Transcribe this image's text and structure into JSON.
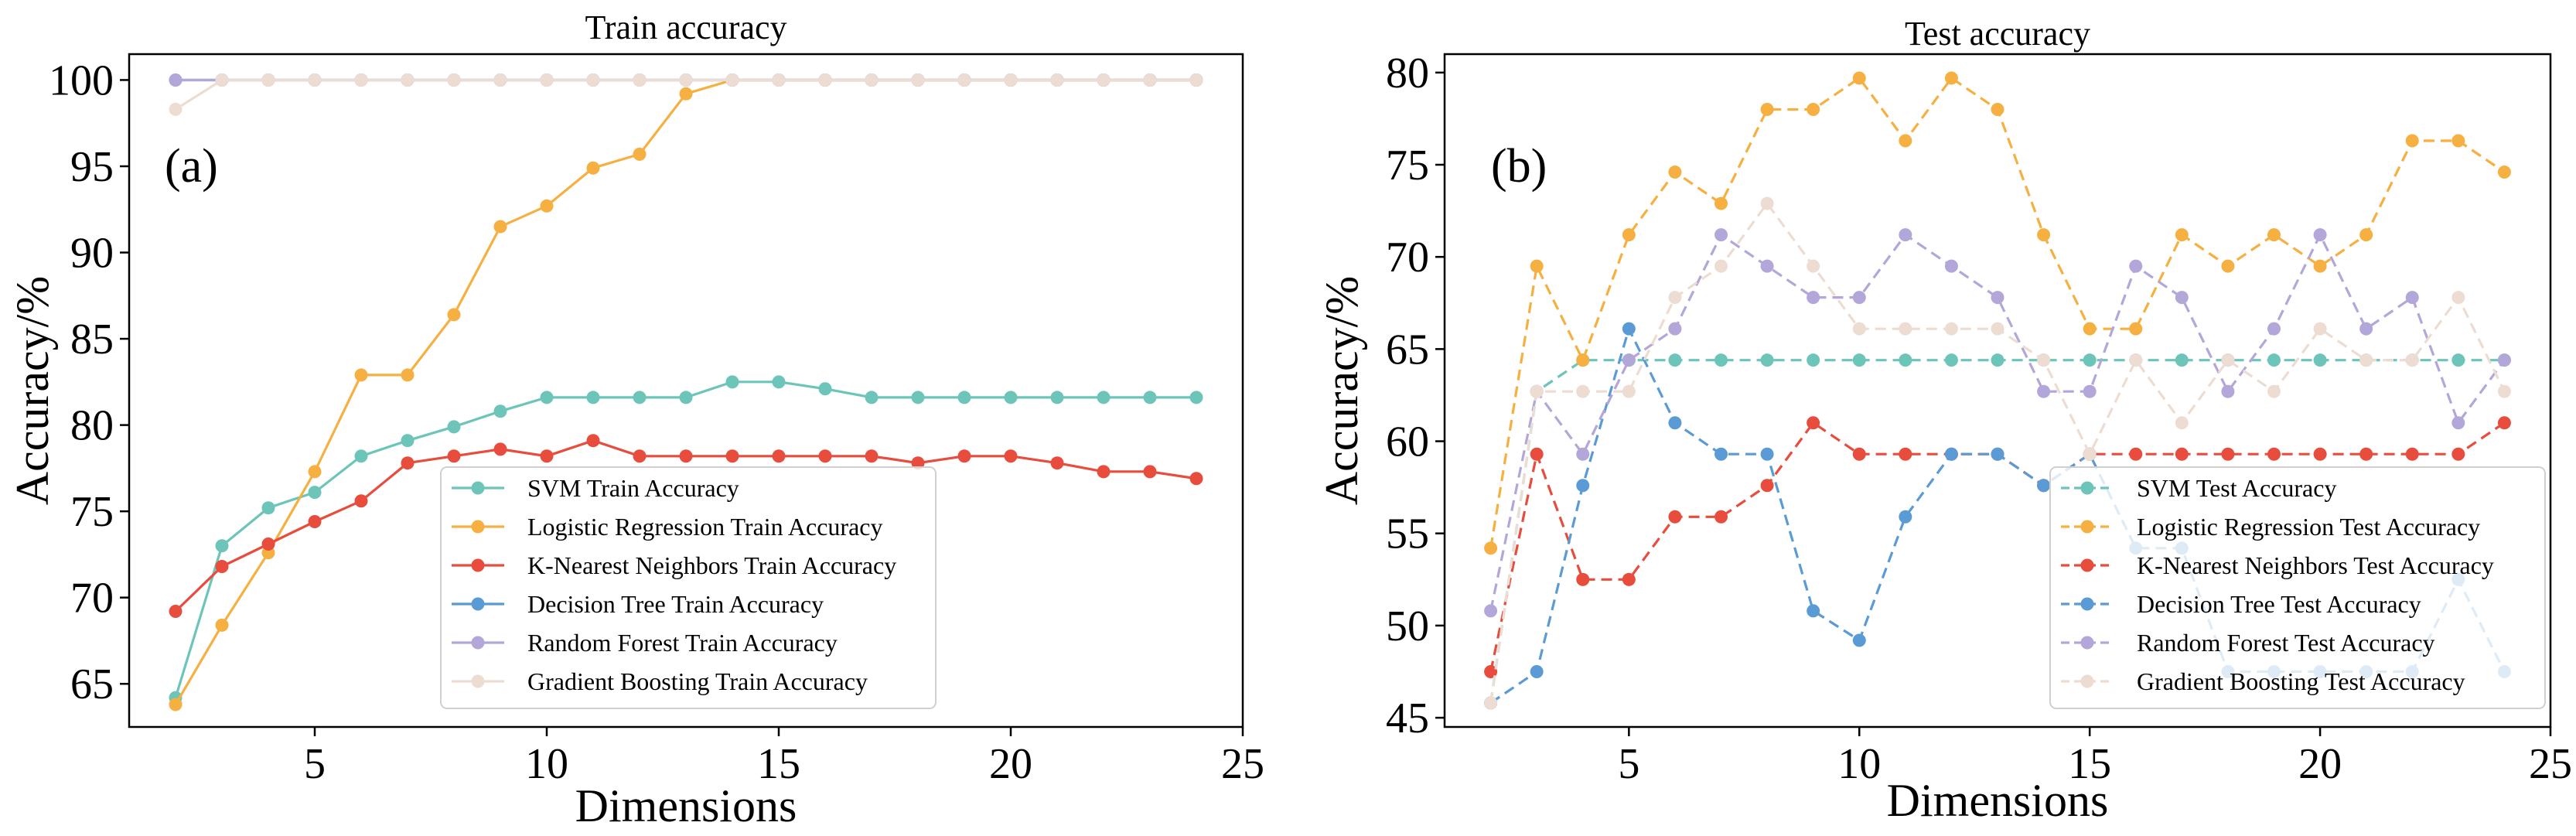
{
  "chart_data": [
    {
      "type": "line",
      "title": "Train accuracy",
      "panel_label": "(a)",
      "xlabel": "Dimensions",
      "ylabel": "Accuracy/%",
      "xlim": [
        1.0,
        25.0
      ],
      "ylim": [
        62.5,
        101.5
      ],
      "xticks": [
        5,
        10,
        15,
        20,
        25
      ],
      "yticks": [
        65,
        70,
        75,
        80,
        85,
        90,
        95,
        100
      ],
      "grid": false,
      "line_style": "solid",
      "legend_position": "lower-right",
      "x": [
        2,
        3,
        4,
        5,
        6,
        7,
        8,
        9,
        10,
        11,
        12,
        13,
        14,
        15,
        16,
        17,
        18,
        19,
        20,
        21,
        22,
        23,
        24
      ],
      "series": [
        {
          "name": "SVM Train Accuracy",
          "color": "#6cc5b8",
          "values": [
            64.2,
            73.0,
            75.2,
            76.1,
            78.2,
            79.1,
            79.9,
            80.8,
            81.6,
            81.6,
            81.6,
            81.6,
            82.5,
            82.5,
            82.1,
            81.6,
            81.6,
            81.6,
            81.6,
            81.6,
            81.6,
            81.6,
            81.6
          ]
        },
        {
          "name": "Logistic Regression Train Accuracy",
          "color": "#f5b041",
          "values": [
            63.8,
            68.4,
            72.6,
            77.3,
            82.9,
            82.9,
            86.4,
            91.5,
            92.7,
            94.9,
            95.7,
            99.2,
            100,
            100,
            100,
            100,
            100,
            100,
            100,
            100,
            100,
            100,
            100
          ]
        },
        {
          "name": "K-Nearest Neighbors Train Accuracy",
          "color": "#e74c3c",
          "values": [
            69.2,
            71.8,
            73.1,
            74.4,
            75.6,
            77.8,
            78.2,
            78.6,
            78.2,
            79.1,
            78.2,
            78.2,
            78.2,
            78.2,
            78.2,
            78.2,
            77.8,
            78.2,
            78.2,
            77.8,
            77.3,
            77.3,
            76.9
          ]
        },
        {
          "name": "Decision Tree Train Accuracy",
          "color": "#5b9bd5",
          "values": [
            100,
            100,
            100,
            100,
            100,
            100,
            100,
            100,
            100,
            100,
            100,
            100,
            100,
            100,
            100,
            100,
            100,
            100,
            100,
            100,
            100,
            100,
            100
          ]
        },
        {
          "name": "Random Forest Train Accuracy",
          "color": "#b3a6d9",
          "values": [
            100,
            100,
            100,
            100,
            100,
            100,
            100,
            100,
            100,
            100,
            100,
            100,
            100,
            100,
            100,
            100,
            100,
            100,
            100,
            100,
            100,
            100,
            100
          ]
        },
        {
          "name": "Gradient Boosting Train Accuracy",
          "color": "#eddcd2",
          "values": [
            98.3,
            100,
            100,
            100,
            100,
            100,
            100,
            100,
            100,
            100,
            100,
            100,
            100,
            100,
            100,
            100,
            100,
            100,
            100,
            100,
            100,
            100,
            100
          ]
        }
      ]
    },
    {
      "type": "line",
      "title": "Test accuracy",
      "panel_label": "(b)",
      "xlabel": "Dimensions",
      "ylabel": "Accuracy/%",
      "xlim": [
        1.0,
        25.0
      ],
      "ylim": [
        44.5,
        81.0
      ],
      "xticks": [
        5,
        10,
        15,
        20,
        25
      ],
      "yticks": [
        45,
        50,
        55,
        60,
        65,
        70,
        75,
        80
      ],
      "grid": false,
      "line_style": "dashed",
      "legend_position": "lower-right",
      "x": [
        2,
        3,
        4,
        5,
        6,
        7,
        8,
        9,
        10,
        11,
        12,
        13,
        14,
        15,
        16,
        17,
        18,
        19,
        20,
        21,
        22,
        23,
        24
      ],
      "series": [
        {
          "name": "SVM Test Accuracy",
          "color": "#6cc5b8",
          "values": [
            45.8,
            62.7,
            64.4,
            64.4,
            64.4,
            64.4,
            64.4,
            64.4,
            64.4,
            64.4,
            64.4,
            64.4,
            64.4,
            64.4,
            64.4,
            64.4,
            64.4,
            64.4,
            64.4,
            64.4,
            64.4,
            64.4,
            64.4
          ]
        },
        {
          "name": "Logistic Regression Test Accuracy",
          "color": "#f5b041",
          "values": [
            54.2,
            69.5,
            64.4,
            71.2,
            74.6,
            72.9,
            78.0,
            78.0,
            79.7,
            76.3,
            79.7,
            78.0,
            71.2,
            66.1,
            66.1,
            71.2,
            69.5,
            71.2,
            69.5,
            71.2,
            76.3,
            76.3,
            74.6
          ]
        },
        {
          "name": "K-Nearest Neighbors Test Accuracy",
          "color": "#e74c3c",
          "values": [
            47.5,
            59.3,
            52.5,
            52.5,
            55.9,
            55.9,
            57.6,
            61.0,
            59.3,
            59.3,
            59.3,
            59.3,
            57.6,
            59.3,
            59.3,
            59.3,
            59.3,
            59.3,
            59.3,
            59.3,
            59.3,
            59.3,
            61.0
          ]
        },
        {
          "name": "Decision Tree Test Accuracy",
          "color": "#5b9bd5",
          "values": [
            45.8,
            47.5,
            57.6,
            66.1,
            61.0,
            59.3,
            59.3,
            50.8,
            49.2,
            55.9,
            59.3,
            59.3,
            57.6,
            59.3,
            54.2,
            54.2,
            47.5,
            47.5,
            47.5,
            47.5,
            47.5,
            52.5,
            47.5
          ]
        },
        {
          "name": "Random Forest Test Accuracy",
          "color": "#b3a6d9",
          "values": [
            50.8,
            62.7,
            59.3,
            64.4,
            66.1,
            71.2,
            69.5,
            67.8,
            67.8,
            71.2,
            69.5,
            67.8,
            62.7,
            62.7,
            69.5,
            67.8,
            62.7,
            66.1,
            71.2,
            66.1,
            67.8,
            61.0,
            64.4
          ]
        },
        {
          "name": "Gradient Boosting Test Accuracy",
          "color": "#eddcd2",
          "values": [
            45.8,
            62.7,
            62.7,
            62.7,
            67.8,
            69.5,
            72.9,
            69.5,
            66.1,
            66.1,
            66.1,
            66.1,
            64.4,
            59.3,
            64.4,
            61.0,
            64.4,
            62.7,
            66.1,
            64.4,
            64.4,
            67.8,
            62.7
          ]
        }
      ]
    }
  ]
}
